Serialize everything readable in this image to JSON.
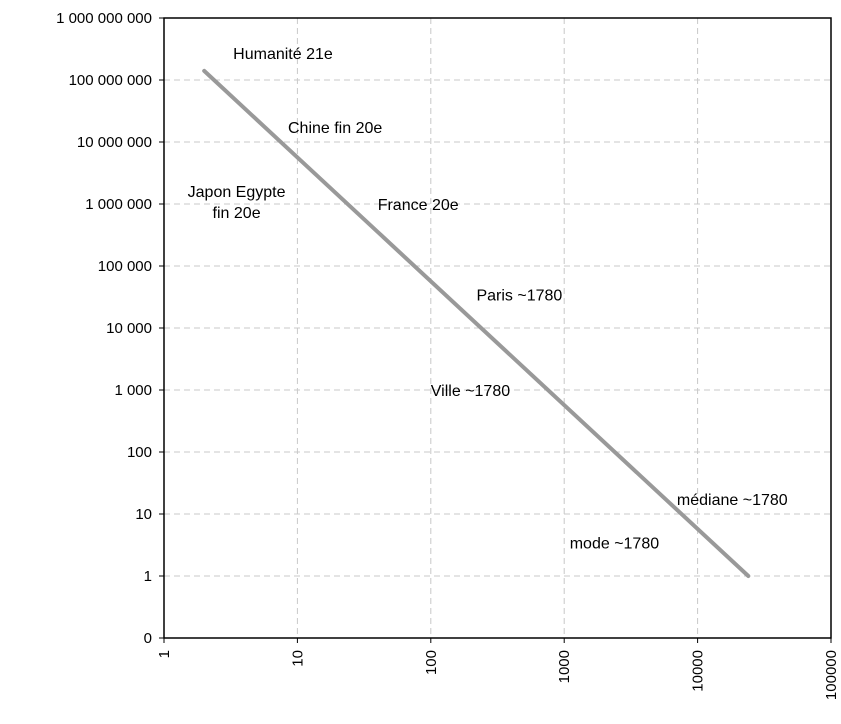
{
  "chart_data": {
    "type": "line",
    "x_scale": "log",
    "y_scale": "log",
    "xlim": [
      1,
      100000
    ],
    "ylim": [
      0,
      1000000000
    ],
    "grid": true,
    "colors": {
      "line": "#999999",
      "grid": "#c8c8c8"
    },
    "x_ticks": [
      {
        "value": 1,
        "label": "1"
      },
      {
        "value": 10,
        "label": "10"
      },
      {
        "value": 100,
        "label": "100"
      },
      {
        "value": 1000,
        "label": "1000"
      },
      {
        "value": 10000,
        "label": "10000"
      },
      {
        "value": 100000,
        "label": "100000"
      }
    ],
    "y_ticks": [
      {
        "value": 0,
        "label": "0"
      },
      {
        "value": 1,
        "label": "1"
      },
      {
        "value": 10,
        "label": "10"
      },
      {
        "value": 100,
        "label": "100"
      },
      {
        "value": 1000,
        "label": "1 000"
      },
      {
        "value": 10000,
        "label": "10 000"
      },
      {
        "value": 100000,
        "label": "100 000"
      },
      {
        "value": 1000000,
        "label": "1 000 000"
      },
      {
        "value": 10000000,
        "label": "10 000 000"
      },
      {
        "value": 100000000,
        "label": "100 000 000"
      },
      {
        "value": 1000000000,
        "label": "1 000 000 000"
      }
    ],
    "series": [
      {
        "x": [
          2,
          24000
        ],
        "y": [
          140000000,
          1
        ]
      }
    ],
    "annotations": [
      {
        "lines": [
          "Humanité 21e"
        ],
        "x": 3.3,
        "y": 220000000,
        "align": "start"
      },
      {
        "lines": [
          "Chine fin 20e"
        ],
        "x": 8.5,
        "y": 14000000,
        "align": "start"
      },
      {
        "lines": [
          "Japon Egypte",
          "fin 20e"
        ],
        "x": 3.5,
        "y": 1300000,
        "align": "middle"
      },
      {
        "lines": [
          "France 20e"
        ],
        "x": 40,
        "y": 800000,
        "align": "start"
      },
      {
        "lines": [
          "Paris ~1780"
        ],
        "x": 220,
        "y": 28000,
        "align": "start"
      },
      {
        "lines": [
          "Ville ~1780"
        ],
        "x": 100,
        "y": 800,
        "align": "start"
      },
      {
        "lines": [
          "médiane ~1780"
        ],
        "x": 7000,
        "y": 14,
        "align": "start"
      },
      {
        "lines": [
          "mode ~1780"
        ],
        "x": 1100,
        "y": 2.8,
        "align": "start"
      }
    ]
  }
}
